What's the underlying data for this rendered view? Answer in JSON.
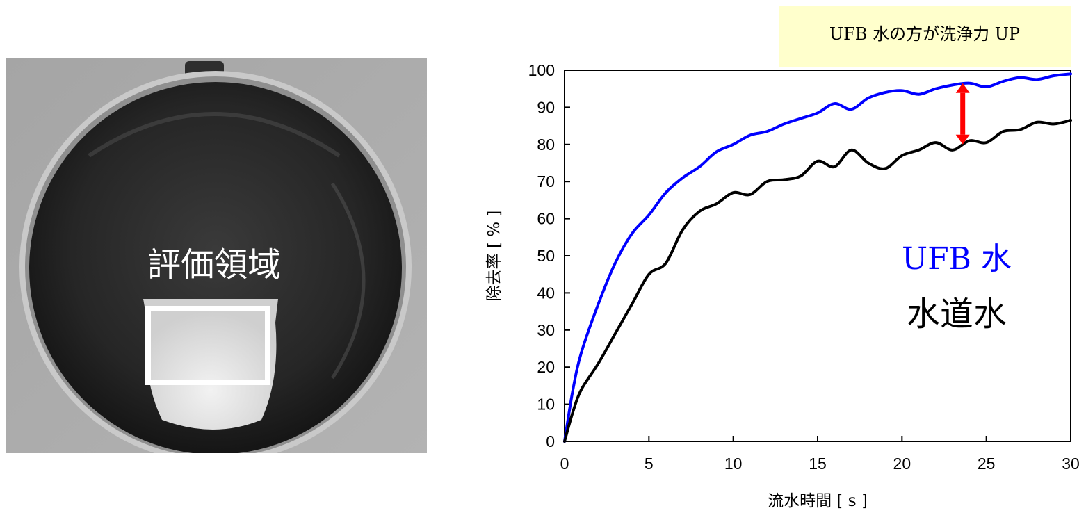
{
  "photo": {
    "region_label": "評価領域"
  },
  "chart_data": {
    "type": "line",
    "xlabel": "流水時間 [ s ]",
    "ylabel": "除去率 [ % ]",
    "xlim": [
      0,
      30
    ],
    "ylim": [
      0,
      100
    ],
    "x_ticks": [
      0,
      5,
      10,
      15,
      20,
      25,
      30
    ],
    "y_ticks": [
      0,
      10,
      20,
      30,
      40,
      50,
      60,
      70,
      80,
      90,
      100
    ],
    "grid": false,
    "annotation": {
      "text": "UFB 水の方が洗浄力 UP",
      "arrow_x": 23.6,
      "arrow_from": 80,
      "arrow_to": 96.5,
      "arrow_color": "#ff0000",
      "box_color": "#ffffcc"
    },
    "series": [
      {
        "name": "UFB 水",
        "color": "#0000ff",
        "x": [
          0,
          0.5,
          1,
          2,
          3,
          4,
          5,
          6,
          7,
          8,
          9,
          10,
          11,
          12,
          13,
          14,
          15,
          16,
          17,
          18,
          19,
          20,
          21,
          22,
          23,
          24,
          25,
          26,
          27,
          28,
          29,
          30
        ],
        "y": [
          0,
          14,
          24,
          37,
          48,
          56,
          61,
          67,
          71,
          74,
          78,
          80,
          82.5,
          83.5,
          85.5,
          87,
          88.5,
          91,
          89.5,
          92.5,
          94,
          94.5,
          93.5,
          95,
          96,
          96.5,
          95.5,
          97,
          98,
          97.5,
          98.5,
          99
        ]
      },
      {
        "name": "水道水",
        "color": "#000000",
        "x": [
          0,
          0.5,
          1,
          2,
          3,
          4,
          5,
          6,
          7,
          8,
          9,
          10,
          11,
          12,
          13,
          14,
          15,
          16,
          17,
          18,
          19,
          20,
          21,
          22,
          23,
          24,
          25,
          26,
          27,
          28,
          29,
          30
        ],
        "y": [
          0,
          8,
          14,
          21,
          29,
          37,
          45,
          48,
          57,
          62,
          64,
          67,
          66.5,
          70,
          70.5,
          71.5,
          75.5,
          74,
          78.5,
          75,
          73.5,
          77,
          78.5,
          80.5,
          78.5,
          81,
          80.5,
          83.5,
          84,
          86,
          85.5,
          86.5
        ]
      }
    ]
  },
  "colors": {
    "pan_outer": "#b8b8b8",
    "pan_inner": "#252525",
    "background_gray": "#a9a9a9"
  }
}
